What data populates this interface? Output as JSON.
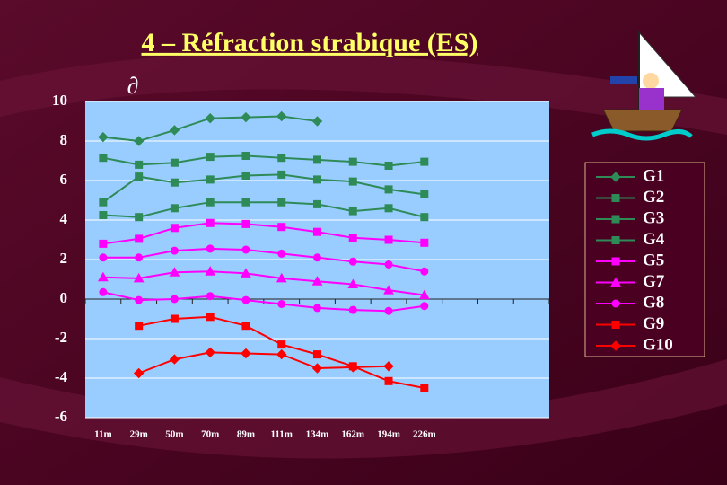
{
  "chart_data": {
    "type": "line",
    "title": "4 – Réfraction strabique (ES)",
    "y_label": "∂",
    "categories": [
      "11m",
      "29m",
      "50m",
      "70m",
      "89m",
      "111m",
      "134m",
      "162m",
      "194m",
      "226m",
      null,
      null,
      null
    ],
    "ylim": [
      -6,
      10
    ],
    "yticks": [
      -6,
      -4,
      -2,
      0,
      2,
      4,
      6,
      8,
      10
    ],
    "grid": true,
    "legend": "right",
    "series": [
      {
        "name": "G1",
        "color": "#2e8b57",
        "marker": "diamond",
        "values": [
          8.2,
          8.0,
          8.55,
          9.15,
          9.2,
          9.25,
          9.0,
          null,
          null,
          null,
          null,
          null,
          null
        ]
      },
      {
        "name": "G2",
        "color": "#2e8b57",
        "marker": "square",
        "values": [
          7.15,
          6.8,
          6.9,
          7.2,
          7.25,
          7.15,
          7.05,
          6.95,
          6.75,
          6.95,
          null,
          null,
          null
        ]
      },
      {
        "name": "G3",
        "color": "#2e8b57",
        "marker": "square",
        "values": [
          4.9,
          6.2,
          5.9,
          6.05,
          6.25,
          6.3,
          6.05,
          5.95,
          5.55,
          5.3,
          null,
          null,
          null
        ]
      },
      {
        "name": "G4",
        "color": "#2e8b57",
        "marker": "square",
        "values": [
          4.25,
          4.15,
          4.6,
          4.9,
          4.9,
          4.9,
          4.8,
          4.45,
          4.6,
          4.15,
          null,
          null,
          null
        ]
      },
      {
        "name": "G5",
        "color": "#ff00ff",
        "marker": "square",
        "values": [
          2.8,
          3.05,
          3.6,
          3.85,
          3.8,
          3.65,
          3.4,
          3.1,
          3.0,
          2.85,
          null,
          null,
          null
        ]
      },
      {
        "color": "#ff00ff",
        "marker": "circle",
        "values": [
          2.1,
          2.1,
          2.45,
          2.55,
          2.5,
          2.3,
          2.1,
          1.9,
          1.75,
          1.4,
          null,
          null,
          null
        ]
      },
      {
        "name": "G7",
        "color": "#ff00ff",
        "marker": "triangle",
        "values": [
          1.1,
          1.05,
          1.35,
          1.4,
          1.3,
          1.05,
          0.9,
          0.75,
          0.45,
          0.2,
          null,
          null,
          null
        ]
      },
      {
        "name": "G8",
        "color": "#ff00ff",
        "marker": "circle",
        "values": [
          0.35,
          -0.05,
          0.0,
          0.15,
          -0.05,
          -0.25,
          -0.45,
          -0.55,
          -0.6,
          -0.35,
          null,
          null,
          null
        ]
      },
      {
        "name": "G9",
        "color": "#ff0000",
        "marker": "square",
        "values": [
          null,
          -1.35,
          -1.0,
          -0.9,
          -1.35,
          -2.3,
          -2.8,
          -3.4,
          -4.15,
          -4.5,
          null,
          null,
          null
        ]
      },
      {
        "name": "G10",
        "color": "#ff0000",
        "marker": "diamond",
        "values": [
          null,
          -3.75,
          -3.05,
          -2.7,
          -2.75,
          -2.8,
          -3.5,
          -3.45,
          -3.4,
          null,
          null,
          null,
          null
        ]
      }
    ]
  }
}
